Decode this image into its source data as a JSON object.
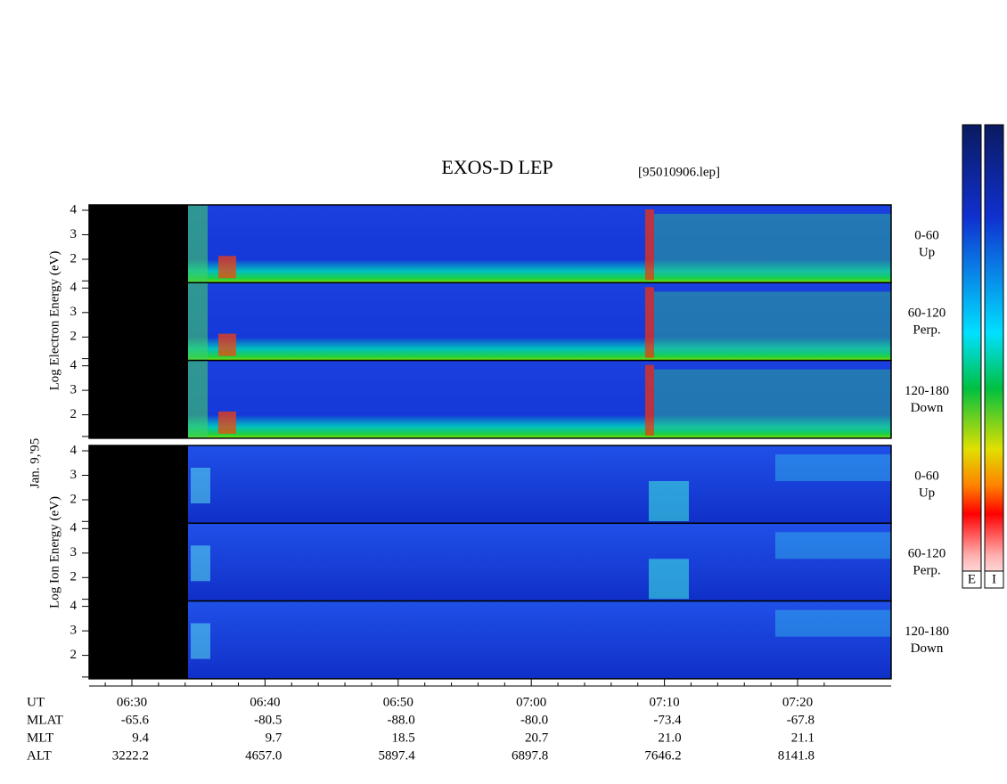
{
  "header": {
    "title": "EXOS-D LEP",
    "file": "[95010906.lep]"
  },
  "date": "Jan. 9,'95",
  "electron": {
    "axis_label": "Log  Electron  Energy (eV)",
    "panels": [
      {
        "yticks": [
          "4",
          "3",
          "2"
        ],
        "angle": "0-60",
        "direction": "Up"
      },
      {
        "yticks": [
          "4",
          "3",
          "2"
        ],
        "angle": "60-120",
        "direction": "Perp."
      },
      {
        "yticks": [
          "4",
          "3",
          "2"
        ],
        "angle": "120-180",
        "direction": "Down"
      }
    ]
  },
  "ion": {
    "axis_label": "Log  Ion  Energy (eV)",
    "panels": [
      {
        "yticks": [
          "4",
          "3",
          "2"
        ],
        "angle": "0-60",
        "direction": "Up"
      },
      {
        "yticks": [
          "4",
          "3",
          "2"
        ],
        "angle": "60-120",
        "direction": "Perp."
      },
      {
        "yticks": [
          "4",
          "3",
          "2"
        ],
        "angle": "120-180",
        "direction": "Down"
      }
    ]
  },
  "colorbars": [
    "E",
    "I"
  ],
  "time_table": {
    "rows": [
      {
        "label": "UT",
        "values": [
          "06:30",
          "06:40",
          "06:50",
          "07:00",
          "07:10",
          "07:20"
        ]
      },
      {
        "label": "MLAT",
        "values": [
          "-65.6",
          "-80.5",
          "-88.0",
          "-80.0",
          "-73.4",
          "-67.8"
        ]
      },
      {
        "label": "MLT",
        "values": [
          "9.4",
          "9.7",
          "18.5",
          "20.7",
          "21.0",
          "21.1"
        ]
      },
      {
        "label": "ALT",
        "values": [
          "3222.2",
          "4657.0",
          "5897.4",
          "6897.8",
          "7646.2",
          "8141.8"
        ]
      }
    ]
  }
}
